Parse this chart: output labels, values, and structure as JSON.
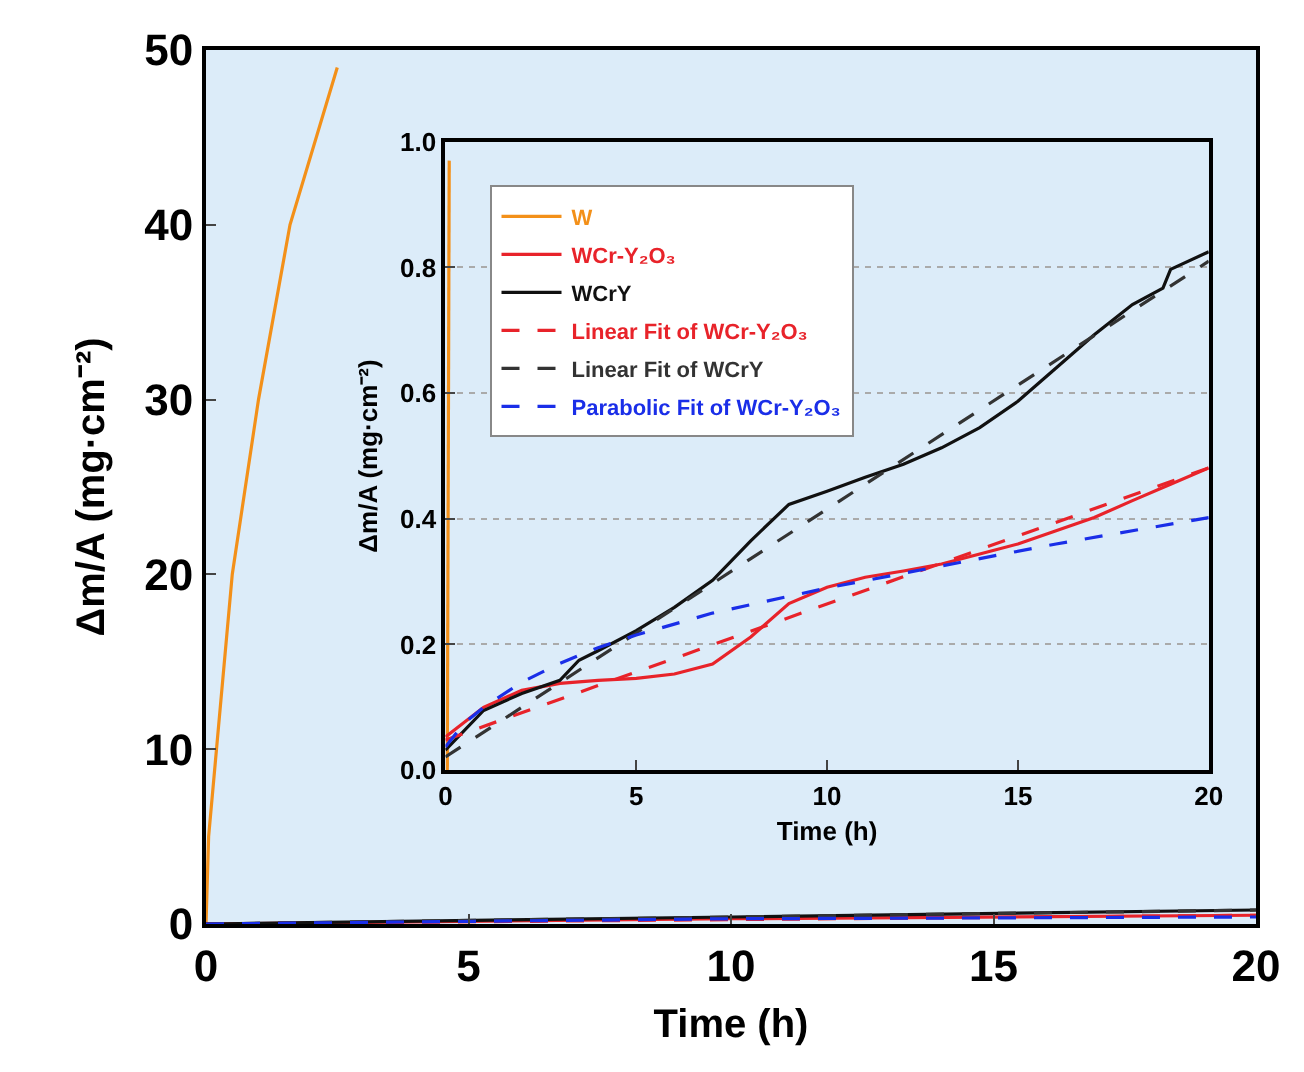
{
  "chart_data": [
    {
      "type": "line",
      "xlabel": "Time (h)",
      "ylabel": "Δm/A (mg·cm⁻²)",
      "xlim": [
        0,
        20
      ],
      "ylim": [
        0,
        50
      ],
      "xticks": [
        0,
        5,
        10,
        15,
        20
      ],
      "yticks": [
        0,
        10,
        20,
        30,
        40,
        50
      ],
      "grid": false,
      "legend": false,
      "marker": "none",
      "series": [
        {
          "color": "#f39019",
          "line_style": "solid",
          "x": [
            0,
            0.05,
            0.2,
            0.5,
            1.0,
            1.6,
            2.5
          ],
          "values": [
            0,
            5,
            10,
            20,
            30,
            40,
            49
          ]
        },
        {
          "color": "#e8232a",
          "line_style": "solid",
          "x": [
            0,
            10,
            20
          ],
          "values": [
            0,
            0.3,
            0.5
          ]
        },
        {
          "color": "#111111",
          "line_style": "solid",
          "x": [
            0,
            10,
            20
          ],
          "values": [
            0,
            0.4,
            0.8
          ]
        },
        {
          "color": "#e8232a",
          "line_style": "dashed",
          "x": [
            0,
            20
          ],
          "values": [
            0,
            0.5
          ]
        },
        {
          "color": "#333333",
          "line_style": "dashed",
          "x": [
            0,
            20
          ],
          "values": [
            0,
            0.8
          ]
        },
        {
          "color": "#1a2ee8",
          "line_style": "dashed",
          "x": [
            0,
            10,
            20
          ],
          "values": [
            0,
            0.3,
            0.4
          ]
        }
      ]
    },
    {
      "type": "line",
      "xlabel": "Time (h)",
      "ylabel": "Δm/A (mg·cm⁻²)",
      "xlim": [
        0,
        20
      ],
      "ylim": [
        0,
        1.0
      ],
      "xticks": [
        0,
        5,
        10,
        15,
        20
      ],
      "yticks": [
        {
          "value": 0,
          "label": "0.0"
        },
        0.2,
        0.4,
        0.6,
        0.8,
        {
          "value": 1,
          "label": "1.0"
        }
      ],
      "grid": "y",
      "legend": "top left",
      "marker": "none",
      "series": [
        {
          "name": "W",
          "color": "#f39019",
          "line_style": "solid",
          "x": [
            0.05,
            0.1
          ],
          "values": [
            0,
            0.97
          ]
        },
        {
          "name": "WCr-Y₂O₃",
          "color": "#e8232a",
          "line_style": "solid",
          "x": [
            0,
            1,
            2,
            3,
            4,
            5,
            6,
            7,
            8,
            9,
            10,
            11,
            12,
            13,
            14,
            15,
            16,
            17,
            18,
            19,
            20
          ],
          "values": [
            0.053,
            0.1,
            0.127,
            0.138,
            0.143,
            0.146,
            0.153,
            0.169,
            0.212,
            0.265,
            0.291,
            0.307,
            0.317,
            0.328,
            0.344,
            0.36,
            0.381,
            0.402,
            0.429,
            0.455,
            0.481
          ]
        },
        {
          "name": "WCrY",
          "color": "#111111",
          "line_style": "solid",
          "x": [
            0,
            1,
            2,
            3,
            3.5,
            4,
            5,
            6,
            7,
            8,
            9,
            10,
            11,
            12,
            13,
            14,
            15,
            16,
            17,
            18,
            18.8,
            19,
            20
          ],
          "values": [
            0.032,
            0.095,
            0.122,
            0.143,
            0.175,
            0.19,
            0.222,
            0.259,
            0.302,
            0.365,
            0.423,
            0.444,
            0.466,
            0.487,
            0.513,
            0.545,
            0.587,
            0.64,
            0.693,
            0.741,
            0.767,
            0.797,
            0.825
          ]
        },
        {
          "name": "Linear Fit of WCr-Y₂O₃",
          "color": "#e8232a",
          "line_style": "dashed",
          "x": [
            0,
            20
          ],
          "values": [
            0.048,
            0.481
          ]
        },
        {
          "name": "Linear Fit of WCrY",
          "color": "#333333",
          "line_style": "dashed",
          "x": [
            0,
            20
          ],
          "values": [
            0.021,
            0.81
          ]
        },
        {
          "name": "Parabolic Fit of WCr-Y₂O₃",
          "color": "#1a2ee8",
          "line_style": "dashed",
          "x": [
            0,
            0.5,
            1,
            2,
            3,
            4,
            5,
            7,
            10,
            13,
            16,
            20
          ],
          "values": [
            0.037,
            0.075,
            0.1,
            0.14,
            0.17,
            0.195,
            0.215,
            0.25,
            0.29,
            0.325,
            0.36,
            0.402
          ]
        }
      ]
    }
  ]
}
